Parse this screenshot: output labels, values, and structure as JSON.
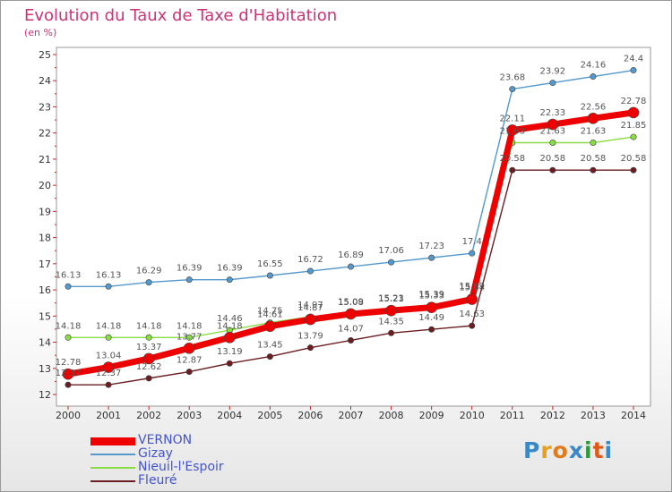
{
  "title": "Evolution du Taux de Taxe d'Habitation",
  "unit": "(en %)",
  "logo": {
    "text": "Proxiti",
    "colors": [
      "#3a88c8",
      "#e6a020",
      "#e07a1a",
      "#3a88c8",
      "#2a9a3a",
      "#e05a1a",
      "#3a88c8"
    ]
  },
  "chart_data": {
    "type": "line",
    "title": "Evolution du Taux de Taxe d'Habitation",
    "ylabel": "(en %)",
    "xlabel": "",
    "ylim": [
      12,
      25
    ],
    "yticks": [
      "12",
      "13",
      "14",
      "15",
      "16",
      "17",
      "18",
      "19",
      "20",
      "21",
      "22",
      "23",
      "24",
      "25"
    ],
    "categories": [
      "2000",
      "2001",
      "2002",
      "2003",
      "2004",
      "2005",
      "2006",
      "2007",
      "2008",
      "2009",
      "2010",
      "2011",
      "2012",
      "2013",
      "2014"
    ],
    "series": [
      {
        "name": "Fleuré",
        "color": "#6b1e22",
        "values": [
          12.37,
          12.37,
          12.62,
          12.87,
          13.19,
          13.45,
          13.79,
          14.07,
          14.35,
          14.49,
          14.63,
          20.58,
          20.58,
          20.58,
          20.58
        ],
        "labels": [
          "12.37",
          "12.37",
          "12.62",
          "12.87",
          "13.19",
          "13.45",
          "13.79",
          "14.07",
          "14.35",
          "14.49",
          "14.63",
          "20.58",
          "20.58",
          "20.58",
          "20.58"
        ]
      },
      {
        "name": "Nieuil-l'Espoir",
        "color": "#88dd44",
        "values": [
          14.18,
          14.18,
          14.18,
          14.18,
          14.46,
          14.75,
          14.97,
          15.09,
          15.23,
          15.39,
          15.69,
          21.63,
          21.63,
          21.63,
          21.85
        ],
        "labels": [
          "14.18",
          "14.18",
          "14.18",
          "14.18",
          "14.46",
          "14.75",
          "14.97",
          "15.09",
          "15.23",
          "15.39",
          "15.69",
          "21.63",
          "21.63",
          "21.63",
          "21.85"
        ]
      },
      {
        "name": "Gizay",
        "color": "#5599cc",
        "values": [
          16.13,
          16.13,
          16.29,
          16.39,
          16.39,
          16.55,
          16.72,
          16.89,
          17.06,
          17.23,
          17.4,
          23.68,
          23.92,
          24.16,
          24.4
        ],
        "labels": [
          "16.13",
          "16.13",
          "16.29",
          "16.39",
          "16.39",
          "16.55",
          "16.72",
          "16.89",
          "17.06",
          "17.23",
          "17.4",
          "23.68",
          "23.92",
          "24.16",
          "24.4"
        ]
      },
      {
        "name": "VERNON",
        "color": "#ee0000",
        "values": [
          12.78,
          13.04,
          13.37,
          13.77,
          14.18,
          14.61,
          14.87,
          15.08,
          15.21,
          15.33,
          15.64,
          22.11,
          22.33,
          22.56,
          22.78
        ],
        "labels": [
          "12.78",
          "13.04",
          "13.37",
          "13.77",
          "14.18",
          "14.61",
          "14.87",
          "15.08",
          "15.21",
          "15.33",
          "15.64",
          "22.11",
          "22.33",
          "22.56",
          "22.78"
        ]
      }
    ],
    "legend_order": [
      "VERNON",
      "Gizay",
      "Nieuil-l'Espoir",
      "Fleuré"
    ],
    "legend": "bottom-left",
    "grid": false
  }
}
